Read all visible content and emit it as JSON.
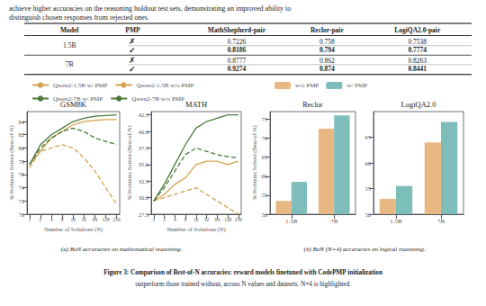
{
  "intro_text": "achieve higher accuracies on the reasoning holdout test sets, demonstrating an improved ability to\ndistinguish chosen responses from rejected ones.",
  "table": {
    "columns": [
      "Model",
      "PMP",
      "MathShepherd-pair",
      "Reclor-pair",
      "LogiQA2.0-pair"
    ],
    "groups": [
      {
        "model": "1.5B",
        "rows": [
          {
            "cells": [
              "✗",
              "0.7226",
              "0.758",
              "0.7538"
            ],
            "bold": false
          },
          {
            "cells": [
              "✓",
              "0.8186",
              "0.794",
              "0.7774"
            ],
            "bold": true
          }
        ]
      },
      {
        "model": "7B",
        "rows": [
          {
            "cells": [
              "✗",
              "0.8777",
              "0.862",
              "0.8263"
            ],
            "bold": false
          },
          {
            "cells": [
              "✓",
              "0.9274",
              "0.874",
              "0.8441"
            ],
            "bold": true
          }
        ]
      }
    ]
  },
  "chart_data": [
    {
      "type": "line",
      "title": "GSM8K",
      "x_label": "Number of Solutions (N)",
      "y_label": "% Problems Solved (Best-of-N)",
      "log": "x",
      "x": [
        1,
        2,
        4,
        8,
        16,
        32,
        64,
        128,
        256
      ],
      "xlim": [
        0.85,
        310
      ],
      "xticks": [
        1,
        2,
        4,
        8,
        16,
        32,
        64,
        128,
        256
      ],
      "ylim": [
        70,
        85.5
      ],
      "yticks": [
        70,
        72,
        74,
        76,
        78,
        80,
        82,
        84
      ],
      "grid": false,
      "legend": "top",
      "series": [
        {
          "name": "Qwen2-1.5B w/ PMP",
          "color": "#D4A24C",
          "line_style": "solid",
          "values": [
            77.5,
            79.5,
            81.5,
            82.5,
            83.5,
            84.0,
            84.2,
            84.3,
            84.3
          ]
        },
        {
          "name": "Qwen2-1.5B w/o PMP",
          "color": "#D4A24C",
          "line_style": "dashed",
          "values": [
            77.0,
            79.5,
            80.0,
            80.5,
            80.0,
            78.5,
            76.5,
            74.0,
            71.5
          ]
        },
        {
          "name": "Qwen2-7B w/ PMP",
          "color": "#4A7A3A",
          "line_style": "solid",
          "values": [
            77.5,
            80.5,
            82.0,
            83.0,
            84.0,
            84.5,
            84.8,
            84.9,
            85.0
          ]
        },
        {
          "name": "Qwen2-7B w/o PMP",
          "color": "#4A7A3A",
          "line_style": "dashed",
          "values": [
            77.5,
            80.0,
            81.5,
            82.5,
            83.0,
            82.5,
            81.5,
            81.0,
            80.5
          ]
        }
      ]
    },
    {
      "type": "line",
      "title": "MATH",
      "x_label": "Number of Solutions (N)",
      "y_label": "% Problems Solved (Best-of-N)",
      "log": "x",
      "x": [
        1,
        2,
        4,
        8,
        16,
        32,
        64,
        128,
        256
      ],
      "xlim": [
        0.85,
        310
      ],
      "xticks": [
        1,
        2,
        4,
        8,
        16,
        32,
        64,
        128,
        256
      ],
      "ylim": [
        27.5,
        43
      ],
      "yticks": [
        27.5,
        {
          "value": 30.0,
          "label": "30.0"
        },
        32.5,
        {
          "value": 35.0,
          "label": "35.0"
        },
        37.5,
        {
          "value": 40.0,
          "label": "40.0"
        },
        42.5
      ],
      "grid": false,
      "legend": "top",
      "series": [
        {
          "name": "Qwen2-1.5B w/ PMP",
          "color": "#D4A24C",
          "line_style": "solid",
          "values": [
            29.5,
            30.5,
            32.0,
            33.0,
            35.0,
            35.5,
            35.5,
            35.0,
            35.5
          ]
        },
        {
          "name": "Qwen2-1.5B w/o PMP",
          "color": "#D4A24C",
          "line_style": "dashed",
          "values": [
            29.5,
            30.0,
            30.5,
            31.0,
            31.5,
            30.5,
            29.5,
            28.5,
            27.5
          ]
        },
        {
          "name": "Qwen2-7B w/ PMP",
          "color": "#4A7A3A",
          "line_style": "solid",
          "values": [
            29.5,
            32.0,
            35.0,
            38.0,
            40.5,
            41.5,
            42.0,
            42.5,
            42.5
          ]
        },
        {
          "name": "Qwen2-7B w/o PMP",
          "color": "#4A7A3A",
          "line_style": "dashed",
          "values": [
            29.5,
            31.5,
            34.0,
            36.5,
            37.5,
            37.0,
            36.5,
            36.2,
            36.0
          ]
        }
      ]
    },
    {
      "type": "bar",
      "title": "Reclor",
      "y_label": "% Problems Solved (Best-of-N)",
      "categories": [
        "1.5B",
        "7B"
      ],
      "ylim": [
        50,
        77
      ],
      "yticks": [
        50,
        55,
        60,
        65,
        70,
        75
      ],
      "grid": false,
      "legend": "top",
      "series": [
        {
          "name": "w/o PMP",
          "color": "#E8B882",
          "values": [
            53.5,
            72.5
          ]
        },
        {
          "name": "w/ PMP",
          "color": "#7DBDBA",
          "values": [
            58.5,
            76.0
          ]
        }
      ]
    },
    {
      "type": "bar",
      "title": "LogiQA2.0",
      "categories": [
        "1.5B",
        "7B"
      ],
      "ylim": [
        50,
        70
      ],
      "yticks": [
        50,
        55,
        60,
        65
      ],
      "grid": false,
      "series": [
        {
          "name": "w/o PMP",
          "color": "#E8B882",
          "values": [
            53.0,
            64.0
          ]
        },
        {
          "name": "w/ PMP",
          "color": "#7DBDBA",
          "values": [
            55.5,
            68.0
          ]
        }
      ]
    }
  ],
  "caption_a": "(a) BoN accuracies on mathematical reasoning.",
  "caption_b": "(b) BoN (N=4) accuracies on logical reasoning.",
  "caption": "Figure 3: Comparison of Best-of-N accuracies: reward models finetuned with CodePMP initialization",
  "caption_sub": "outperform those trained without, across N values and datasets. N=4 is highlighted."
}
